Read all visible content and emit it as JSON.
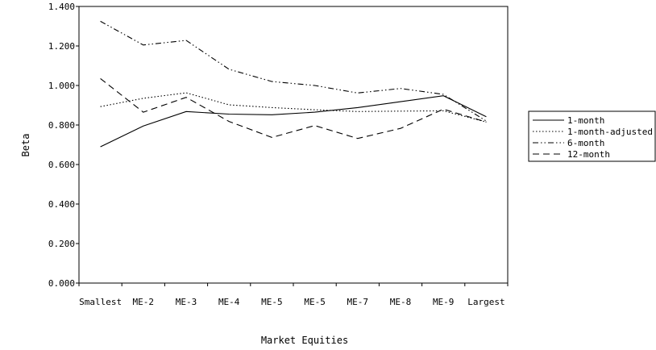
{
  "chart_data": {
    "type": "line",
    "title": "",
    "xlabel": "Market Equities",
    "ylabel": "Beta",
    "categories": [
      "Smallest",
      "ME-2",
      "ME-3",
      "ME-4",
      "ME-5",
      "ME-5",
      "ME-7",
      "ME-8",
      "ME-9",
      "Largest"
    ],
    "ylim": [
      0,
      1.4
    ],
    "yticks": [
      "0.000",
      "0.200",
      "0.400",
      "0.600",
      "0.800",
      "1.000",
      "1.200",
      "1.400"
    ],
    "grid": false,
    "legend_position": "right",
    "series": [
      {
        "name": "1-month",
        "dash": "solid",
        "color": "#000000",
        "values": [
          0.69,
          0.795,
          0.868,
          0.855,
          0.852,
          0.865,
          0.888,
          0.918,
          0.948,
          0.842
        ]
      },
      {
        "name": "1-month-adjusted",
        "dash": "dotted",
        "color": "#000000",
        "values": [
          0.893,
          0.935,
          0.963,
          0.902,
          0.888,
          0.877,
          0.868,
          0.87,
          0.872,
          0.815
        ]
      },
      {
        "name": "6-month",
        "dash": "dashdotdot",
        "color": "#000000",
        "values": [
          1.325,
          1.205,
          1.228,
          1.082,
          1.02,
          1.0,
          0.962,
          0.985,
          0.955,
          0.82
        ]
      },
      {
        "name": "12-month",
        "dash": "dashed",
        "color": "#000000",
        "values": [
          1.035,
          0.865,
          0.94,
          0.818,
          0.737,
          0.797,
          0.732,
          0.783,
          0.88,
          0.815
        ]
      }
    ]
  }
}
